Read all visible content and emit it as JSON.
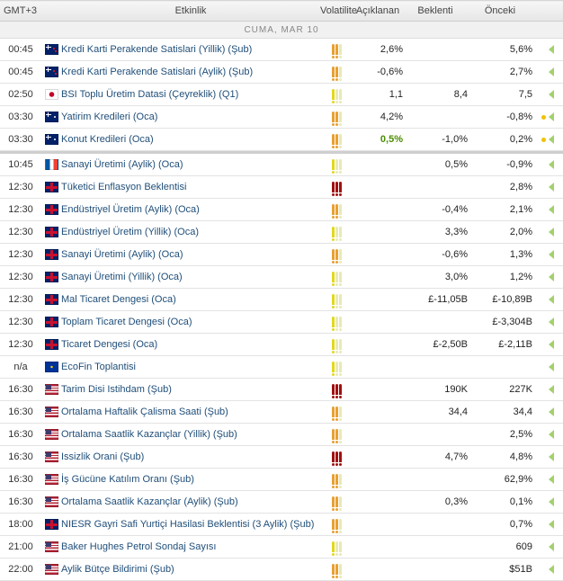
{
  "header": {
    "timezone": "GMT+3",
    "event": "Etkinlik",
    "volatility": "Volatilite",
    "actual": "Açıklanan",
    "forecast": "Beklenti",
    "previous": "Önceki"
  },
  "date_label": "CUMA, MAR 10",
  "colors": {
    "flag_high": "#a01010",
    "flag_medium": "#e8a030",
    "flag_low": "#e2d81c",
    "link": "#1f4e79",
    "better": "#4c8d00"
  },
  "events": [
    {
      "time": "00:45",
      "country": "nz",
      "title": "Kredi Karti Perakende Satislari (Yillik) (Şub)",
      "vol": "medium",
      "actual": "2,6%",
      "forecast": "",
      "previous": "5,6%"
    },
    {
      "time": "00:45",
      "country": "nz",
      "title": "Kredi Karti Perakende Satislari (Aylik) (Şub)",
      "vol": "medium",
      "actual": "-0,6%",
      "forecast": "",
      "previous": "2,7%"
    },
    {
      "time": "02:50",
      "country": "jp",
      "title": "BSI Toplu Üretim Datasi (Çeyreklik) (Q1)",
      "vol": "low",
      "actual": "1,1",
      "forecast": "8,4",
      "previous": "7,5"
    },
    {
      "time": "03:30",
      "country": "au",
      "title": "Yatirim Kredileri (Oca)",
      "vol": "medium",
      "actual": "4,2%",
      "forecast": "",
      "previous": "-0,8%",
      "dot": true
    },
    {
      "time": "03:30",
      "country": "au",
      "title": "Konut Kredileri (Oca)",
      "vol": "medium",
      "actual": "0,5%",
      "actual_better": true,
      "forecast": "-1,0%",
      "previous": "0,2%",
      "dot": true
    },
    {
      "time": "10:45",
      "country": "fr",
      "title": "Sanayi Üretimi (Aylik) (Oca)",
      "vol": "low",
      "actual": "",
      "forecast": "0,5%",
      "previous": "-0,9%",
      "sep": true
    },
    {
      "time": "12:30",
      "country": "gb",
      "title": "Tüketici Enflasyon Beklentisi",
      "vol": "high",
      "actual": "",
      "forecast": "",
      "previous": "2,8%"
    },
    {
      "time": "12:30",
      "country": "gb",
      "title": "Endüstriyel Üretim (Aylik) (Oca)",
      "vol": "medium",
      "actual": "",
      "forecast": "-0,4%",
      "previous": "2,1%"
    },
    {
      "time": "12:30",
      "country": "gb",
      "title": "Endüstriyel Üretim (Yillik) (Oca)",
      "vol": "low",
      "actual": "",
      "forecast": "3,3%",
      "previous": "2,0%"
    },
    {
      "time": "12:30",
      "country": "gb",
      "title": "Sanayi Üretimi (Aylik) (Oca)",
      "vol": "medium",
      "actual": "",
      "forecast": "-0,6%",
      "previous": "1,3%"
    },
    {
      "time": "12:30",
      "country": "gb",
      "title": "Sanayi Üretimi (Yillik) (Oca)",
      "vol": "low",
      "actual": "",
      "forecast": "3,0%",
      "previous": "1,2%"
    },
    {
      "time": "12:30",
      "country": "gb",
      "title": "Mal Ticaret Dengesi (Oca)",
      "vol": "low",
      "actual": "",
      "forecast": "£-11,05B",
      "previous": "£-10,89B"
    },
    {
      "time": "12:30",
      "country": "gb",
      "title": "Toplam Ticaret Dengesi (Oca)",
      "vol": "low",
      "actual": "",
      "forecast": "",
      "previous": "£-3,304B"
    },
    {
      "time": "12:30",
      "country": "gb",
      "title": "Ticaret Dengesi (Oca)",
      "vol": "low",
      "actual": "",
      "forecast": "£-2,50B",
      "previous": "£-2,11B"
    },
    {
      "time": "n/a",
      "country": "eu",
      "title": "EcoFin Toplantisi",
      "vol": "low",
      "actual": "",
      "forecast": "",
      "previous": ""
    },
    {
      "time": "16:30",
      "country": "us",
      "title": "Tarim Disi Istihdam (Şub)",
      "vol": "high",
      "actual": "",
      "forecast": "190K",
      "previous": "227K"
    },
    {
      "time": "16:30",
      "country": "us",
      "title": "Ortalama Haftalik Çalisma Saati (Şub)",
      "vol": "medium",
      "actual": "",
      "forecast": "34,4",
      "previous": "34,4"
    },
    {
      "time": "16:30",
      "country": "us",
      "title": "Ortalama Saatlik Kazançlar (Yillik) (Şub)",
      "vol": "medium",
      "actual": "",
      "forecast": "",
      "previous": "2,5%"
    },
    {
      "time": "16:30",
      "country": "us",
      "title": "Issizlik Orani (Şub)",
      "vol": "high",
      "actual": "",
      "forecast": "4,7%",
      "previous": "4,8%"
    },
    {
      "time": "16:30",
      "country": "us",
      "title": "İş Gücüne Katılım Oranı (Şub)",
      "vol": "medium",
      "actual": "",
      "forecast": "",
      "previous": "62,9%"
    },
    {
      "time": "16:30",
      "country": "us",
      "title": "Ortalama Saatlik Kazançlar (Aylik) (Şub)",
      "vol": "medium",
      "actual": "",
      "forecast": "0,3%",
      "previous": "0,1%"
    },
    {
      "time": "18:00",
      "country": "gb",
      "title": "NIESR Gayri Safi Yurtiçi Hasilasi Beklentisi (3 Aylik) (Şub)",
      "vol": "medium",
      "actual": "",
      "forecast": "",
      "previous": "0,7%"
    },
    {
      "time": "21:00",
      "country": "us",
      "title": "Baker Hughes Petrol Sondaj Sayısı",
      "vol": "low",
      "actual": "",
      "forecast": "",
      "previous": "609"
    },
    {
      "time": "22:00",
      "country": "us",
      "title": "Aylik Bütçe Bildirimi (Şub)",
      "vol": "medium",
      "actual": "",
      "forecast": "",
      "previous": "$51B"
    }
  ]
}
